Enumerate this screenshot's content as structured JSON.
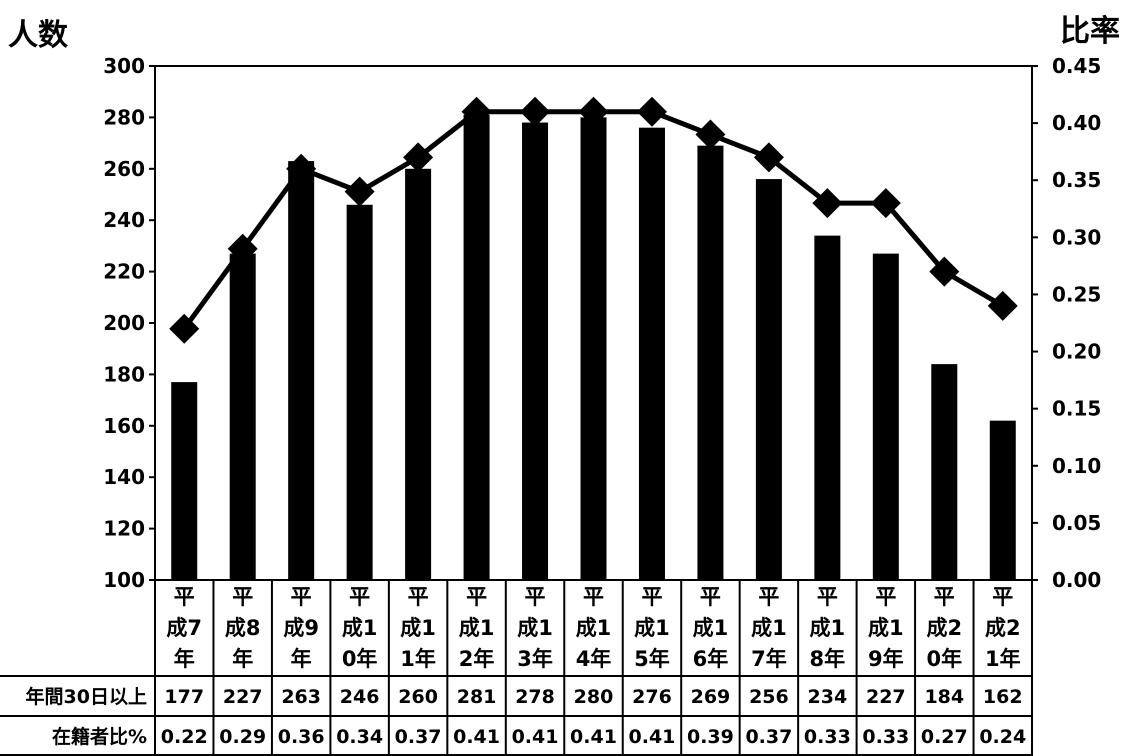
{
  "chart_data": {
    "type": "bar",
    "left_axis_title": "人数",
    "right_axis_title": "比率",
    "y_left_ticks": [
      "300",
      "280",
      "260",
      "240",
      "220",
      "200",
      "180",
      "160",
      "140",
      "120",
      "100"
    ],
    "y_right_ticks": [
      "0.45",
      "0.40",
      "0.35",
      "0.30",
      "0.25",
      "0.20",
      "0.15",
      "0.10",
      "0.05",
      "0.00"
    ],
    "ylim_left": [
      100,
      300
    ],
    "ylim_right": [
      0,
      0.45
    ],
    "categories": [
      [
        "平",
        "成7",
        "年"
      ],
      [
        "平",
        "成8",
        "年"
      ],
      [
        "平",
        "成9",
        "年"
      ],
      [
        "平",
        "成1",
        "0年"
      ],
      [
        "平",
        "成1",
        "1年"
      ],
      [
        "平",
        "成1",
        "2年"
      ],
      [
        "平",
        "成1",
        "3年"
      ],
      [
        "平",
        "成1",
        "4年"
      ],
      [
        "平",
        "成1",
        "5年"
      ],
      [
        "平",
        "成1",
        "6年"
      ],
      [
        "平",
        "成1",
        "7年"
      ],
      [
        "平",
        "成1",
        "8年"
      ],
      [
        "平",
        "成1",
        "9年"
      ],
      [
        "平",
        "成2",
        "0年"
      ],
      [
        "平",
        "成2",
        "1年"
      ]
    ],
    "series": [
      {
        "name": "年間30日以上",
        "type": "bar",
        "axis": "left",
        "values": [
          177,
          227,
          263,
          246,
          260,
          281,
          278,
          280,
          276,
          269,
          256,
          234,
          227,
          184,
          162
        ]
      },
      {
        "name": "在籍者比%",
        "type": "line",
        "axis": "right",
        "values": [
          0.22,
          0.29,
          0.36,
          0.34,
          0.37,
          0.41,
          0.41,
          0.41,
          0.41,
          0.39,
          0.37,
          0.33,
          0.33,
          0.27,
          0.24
        ]
      }
    ],
    "table_rows": [
      {
        "label": "年間30日以上",
        "values": [
          "177",
          "227",
          "263",
          "246",
          "260",
          "281",
          "278",
          "280",
          "276",
          "269",
          "256",
          "234",
          "227",
          "184",
          "162"
        ]
      },
      {
        "label": "在籍者比%",
        "values": [
          "0.22",
          "0.29",
          "0.36",
          "0.34",
          "0.37",
          "0.41",
          "0.41",
          "0.41",
          "0.41",
          "0.39",
          "0.37",
          "0.33",
          "0.33",
          "0.27",
          "0.24"
        ]
      }
    ],
    "grid": false,
    "colors": {
      "bar": "#000000",
      "line": "#000000",
      "marker": "#000000"
    }
  }
}
